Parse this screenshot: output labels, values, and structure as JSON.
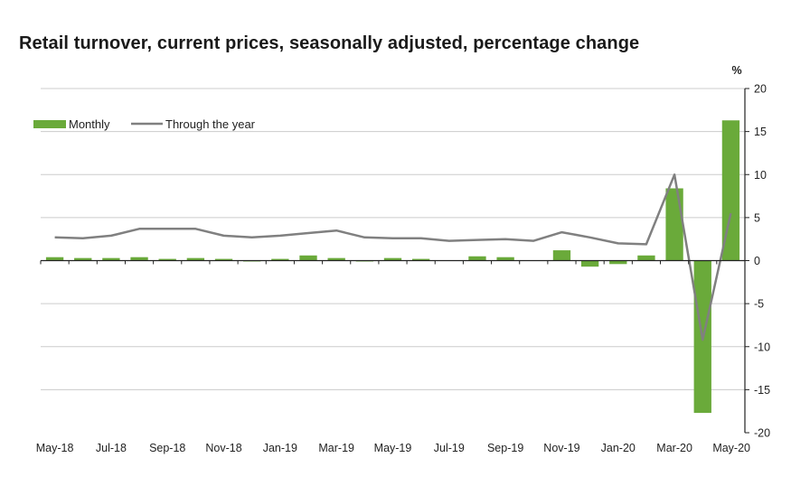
{
  "chart_data": {
    "type": "bar+line",
    "title": "Retail turnover, current prices, seasonally adjusted, percentage change",
    "ylabel": "%",
    "ylim": [
      -20,
      20
    ],
    "yticks": [
      20,
      15,
      10,
      5,
      0,
      -5,
      -10,
      -15,
      -20
    ],
    "grid": true,
    "legend_position": "top-left",
    "categories": [
      "May-18",
      "Jun-18",
      "Jul-18",
      "Aug-18",
      "Sep-18",
      "Oct-18",
      "Nov-18",
      "Dec-18",
      "Jan-19",
      "Feb-19",
      "Mar-19",
      "Apr-19",
      "May-19",
      "Jun-19",
      "Jul-19",
      "Aug-19",
      "Sep-19",
      "Oct-19",
      "Nov-19",
      "Dec-19",
      "Jan-20",
      "Feb-20",
      "Mar-20",
      "Apr-20",
      "May-20"
    ],
    "xtick_labels": [
      "May-18",
      "Jul-18",
      "Sep-18",
      "Nov-18",
      "Jan-19",
      "Mar-19",
      "May-19",
      "Jul-19",
      "Sep-19",
      "Nov-19",
      "Jan-20",
      "Mar-20",
      "May-20"
    ],
    "series": [
      {
        "name": "Monthly",
        "kind": "bar",
        "color": "#6aaa3a",
        "values": [
          0.4,
          0.3,
          0.3,
          0.4,
          0.2,
          0.3,
          0.2,
          -0.1,
          0.2,
          0.6,
          0.3,
          -0.1,
          0.3,
          0.2,
          0.0,
          0.5,
          0.4,
          0.0,
          1.2,
          -0.7,
          -0.4,
          0.6,
          8.4,
          -17.7,
          16.3
        ]
      },
      {
        "name": "Through the year",
        "kind": "line",
        "color": "#808080",
        "values": [
          2.7,
          2.6,
          2.9,
          3.7,
          3.7,
          3.7,
          2.9,
          2.7,
          2.9,
          3.2,
          3.5,
          2.7,
          2.6,
          2.6,
          2.3,
          2.4,
          2.5,
          2.3,
          3.3,
          2.7,
          2.0,
          1.9,
          10.0,
          -9.2,
          5.5
        ]
      }
    ]
  }
}
